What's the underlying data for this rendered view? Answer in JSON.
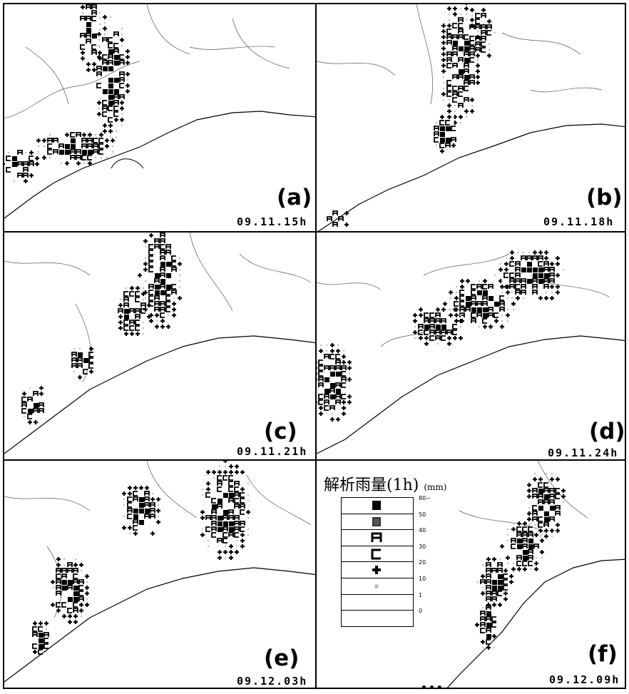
{
  "panels": [
    {
      "id": "a",
      "label": "(a)",
      "time": "09.11.15h"
    },
    {
      "id": "b",
      "label": "(b)",
      "time": "09.11.18h"
    },
    {
      "id": "c",
      "label": "(c)",
      "time": "09.11.21h"
    },
    {
      "id": "d",
      "label": "(d)",
      "time": "09.11.24h"
    },
    {
      "id": "e",
      "label": "(e)",
      "time": "09.12.03h"
    },
    {
      "id": "f",
      "label": "(f)",
      "time": "09.12.09h"
    }
  ],
  "legend": {
    "title": "解析雨量(1h)",
    "unit": "(mm)",
    "thresholds": [
      "80~",
      "50",
      "40",
      "30",
      "20",
      "10",
      "1",
      "0"
    ],
    "symbols": [
      "solid-square",
      "gray-square",
      "letter-A",
      "letter-C",
      "plus-dot",
      "light-dot",
      "blank",
      "blank"
    ]
  },
  "footer_marker": "•••"
}
